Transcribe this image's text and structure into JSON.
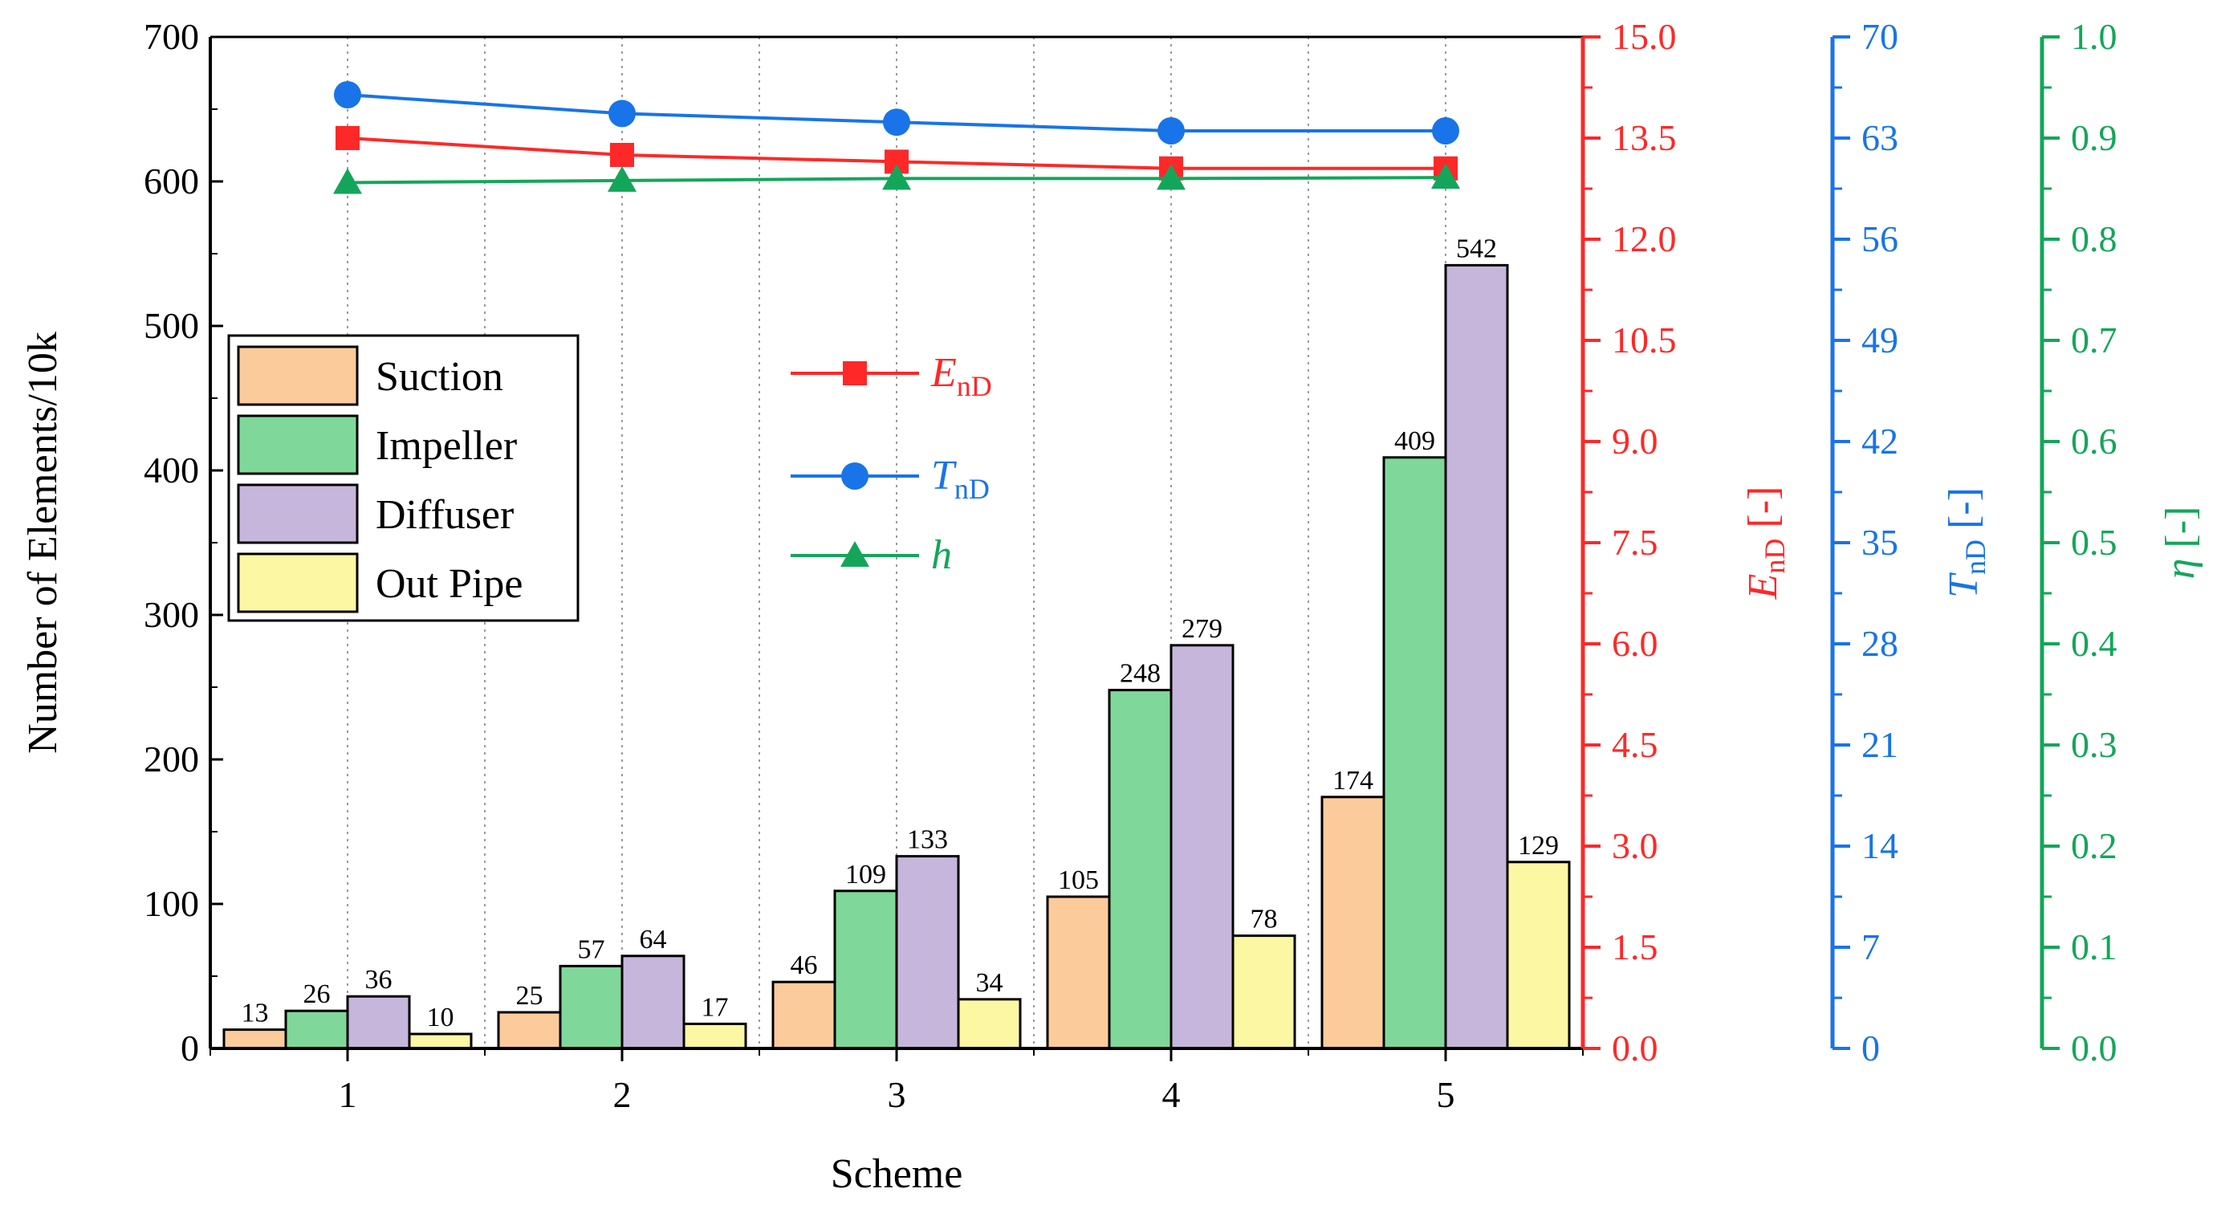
{
  "chart_data": {
    "type": "bar",
    "xlabel": "Scheme",
    "ylabel": "Number of Elements/10k",
    "ylim": [
      0,
      700
    ],
    "yticks": [
      "0",
      "100",
      "200",
      "300",
      "400",
      "500",
      "600",
      "700"
    ],
    "categories": [
      "1",
      "2",
      "3",
      "4",
      "5"
    ],
    "series": [
      {
        "name": "Suction",
        "color": "#FCCB9C",
        "values": [
          13,
          25,
          46,
          105,
          174
        ],
        "labels": [
          "13",
          "25",
          "46",
          "105",
          "174"
        ]
      },
      {
        "name": "Impeller",
        "color": "#7FD899",
        "values": [
          26,
          57,
          109,
          248,
          409
        ],
        "labels": [
          "26",
          "57",
          "109",
          "248",
          "409"
        ]
      },
      {
        "name": "Diffuser",
        "color": "#C7B6DB",
        "values": [
          36,
          64,
          133,
          279,
          542
        ],
        "labels": [
          "36",
          "64",
          "133",
          "279",
          "542"
        ]
      },
      {
        "name": "Out Pipe",
        "color": "#FBF7A2",
        "values": [
          10,
          17,
          34,
          78,
          129
        ],
        "labels": [
          "10",
          "17",
          "34",
          "78",
          "129"
        ]
      }
    ],
    "lines": [
      {
        "name": "E",
        "sub": "nD",
        "color": "#FF2828",
        "marker": "square",
        "axis": "E",
        "values": [
          13.5,
          13.25,
          13.15,
          13.05,
          13.05
        ]
      },
      {
        "name": "T",
        "sub": "nD",
        "color": "#1874E8",
        "marker": "circle",
        "axis": "T",
        "values": [
          66.0,
          64.7,
          64.1,
          63.5,
          63.5
        ]
      },
      {
        "name": "h",
        "sub": "",
        "color": "#13A65A",
        "marker": "triangle",
        "axis": "eta",
        "values": [
          0.856,
          0.858,
          0.86,
          0.86,
          0.861
        ]
      }
    ],
    "right_axes": [
      {
        "id": "E",
        "color": "#FF2828",
        "label_main": "E",
        "label_sub": "nD",
        "label_tail": " [-]",
        "ylim": [
          0,
          15
        ],
        "ticks": [
          "0.0",
          "1.5",
          "3.0",
          "4.5",
          "6.0",
          "7.5",
          "9.0",
          "10.5",
          "12.0",
          "13.5",
          "15.0"
        ]
      },
      {
        "id": "T",
        "color": "#1874E8",
        "label_main": "T",
        "label_sub": "nD",
        "label_tail": " [-]",
        "ylim": [
          0,
          70
        ],
        "ticks": [
          "0",
          "7",
          "14",
          "21",
          "28",
          "35",
          "42",
          "49",
          "56",
          "63",
          "70"
        ]
      },
      {
        "id": "eta",
        "color": "#13A65A",
        "label_main": "η",
        "label_sub": "",
        "label_tail": " [-]",
        "ylim": [
          0,
          1
        ],
        "ticks": [
          "0.0",
          "0.1",
          "0.2",
          "0.3",
          "0.4",
          "0.5",
          "0.6",
          "0.7",
          "0.8",
          "0.9",
          "1.0"
        ]
      }
    ],
    "bar_legend": [
      "Suction",
      "Impeller",
      "Diffuser",
      "Out Pipe"
    ],
    "grid": "vertical dotted",
    "legend_position": "left"
  }
}
